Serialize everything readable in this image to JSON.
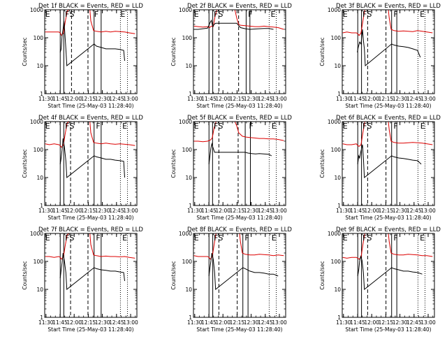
{
  "chart_data": {
    "type": "line",
    "xlabel": "Start Time (25-May-03 11:28:40)",
    "ylabel": "Counts/sec",
    "log_y": true,
    "ylim": [
      1,
      1000
    ],
    "y_ticks": [
      1,
      10,
      100,
      1000
    ],
    "x_ticks": [
      "11:30",
      "11:45",
      "12:00",
      "12:15",
      "12:30",
      "12:45",
      "13:00"
    ],
    "x_tick_minutes": [
      1.33,
      16.33,
      31.33,
      46.33,
      61.33,
      76.33,
      91.33
    ],
    "xlim_minutes": [
      0,
      98
    ],
    "series_colors": {
      "events": "#000000",
      "lld": "#dd0000"
    },
    "panels": [
      {
        "title": "Det 1f BLACK = Events, RED = LLD",
        "labels": [
          "E",
          "F",
          "S",
          "F",
          "E"
        ],
        "label_minutes": [
          0.6,
          21.5,
          26.3,
          52.5,
          80.5
        ],
        "solid_lines": [
          16.5,
          20.3,
          52.5,
          60.0
        ],
        "dashed_lines": [
          28.5,
          46.0
        ],
        "dotted_lines": [
          80.5,
          88.0
        ],
        "events": {
          "x": [
            16.5,
            17.5,
            18.5,
            19.5,
            20.5,
            21.5,
            22.5,
            23.5,
            52.5,
            55,
            60,
            65,
            70,
            75,
            80,
            84,
            85
          ],
          "y": [
            30,
            40,
            120,
            200,
            400,
            130,
            40,
            10,
            60,
            50,
            45,
            40,
            40,
            40,
            38,
            35,
            15
          ]
        },
        "lld": {
          "x": [
            0.5,
            5,
            10,
            15,
            16.5,
            18,
            20,
            22,
            24,
            26,
            28,
            48,
            49,
            52,
            55,
            60,
            65,
            70,
            75,
            80,
            85,
            90,
            96
          ],
          "y": [
            160,
            160,
            160,
            160,
            150,
            120,
            150,
            400,
            900,
            1000,
            1000,
            1000,
            400,
            180,
            170,
            160,
            170,
            160,
            170,
            165,
            160,
            150,
            140
          ]
        }
      },
      {
        "title": "Det 2f BLACK = Events, RED = LLD",
        "labels": [
          "E",
          "F",
          "S",
          "F",
          "E"
        ],
        "label_minutes": [
          0.6,
          21.5,
          26.3,
          58.0,
          82.0
        ],
        "solid_lines": [
          16.5,
          20.5,
          56.0,
          60.0
        ],
        "dashed_lines": [
          27.0,
          48.0
        ],
        "dotted_lines": [
          80.5,
          88.0
        ],
        "events": {
          "x": [
            0.5,
            5,
            10,
            15,
            16,
            17.5,
            19,
            20.5,
            22,
            23.5,
            46,
            50,
            55,
            60,
            65,
            70,
            75,
            80,
            85
          ],
          "y": [
            200,
            200,
            210,
            220,
            260,
            340,
            420,
            250,
            300,
            330,
            330,
            230,
            210,
            200,
            205,
            210,
            215,
            215,
            200
          ]
        },
        "lld": {
          "x": [
            0.5,
            5,
            10,
            15,
            17,
            19,
            21,
            23,
            25,
            27,
            29,
            44,
            46,
            48,
            50,
            55,
            60,
            65,
            70,
            75,
            80,
            85,
            90,
            96
          ],
          "y": [
            260,
            250,
            240,
            250,
            230,
            260,
            250,
            600,
            1000,
            1000,
            1000,
            1000,
            500,
            300,
            280,
            270,
            260,
            250,
            250,
            260,
            250,
            240,
            230,
            200
          ]
        }
      },
      {
        "title": "Det 3f BLACK = Events, RED = LLD",
        "labels": [
          "E",
          "F",
          "S",
          "F",
          "E"
        ],
        "label_minutes": [
          0.6,
          21.5,
          26.3,
          54.5,
          82.5
        ],
        "solid_lines": [
          16.5,
          20.5,
          52.5,
          58.0
        ],
        "dashed_lines": [
          27.0,
          46.5
        ],
        "dotted_lines": [
          80.5,
          88.0
        ],
        "events": {
          "x": [
            16,
            17,
            18.5,
            20,
            21.5,
            22.5,
            23.5,
            24.5,
            52.5,
            55,
            60,
            65,
            70,
            75,
            80,
            83
          ],
          "y": [
            30,
            45,
            70,
            60,
            200,
            80,
            40,
            10,
            60,
            55,
            50,
            48,
            45,
            40,
            35,
            20
          ]
        },
        "lld": {
          "x": [
            0.5,
            5,
            10,
            15,
            16.5,
            18,
            20,
            22,
            24,
            26,
            28,
            49,
            50,
            52,
            55,
            60,
            65,
            70,
            75,
            80,
            85,
            90,
            96
          ],
          "y": [
            150,
            160,
            150,
            150,
            140,
            120,
            150,
            400,
            1000,
            1000,
            1000,
            1000,
            500,
            200,
            180,
            170,
            175,
            170,
            165,
            180,
            170,
            160,
            150
          ]
        }
      },
      {
        "title": "Det 4f BLACK = Events, RED = LLD",
        "labels": [
          "E",
          "F",
          "S",
          "F",
          "E"
        ],
        "label_minutes": [
          0.6,
          21.5,
          26.3,
          54.5,
          82.5
        ],
        "solid_lines": [
          16.5,
          20.3,
          52.5,
          60.0
        ],
        "dashed_lines": [
          27.5,
          46.0
        ],
        "dotted_lines": [
          80.5,
          88.0
        ],
        "events": {
          "x": [
            16.5,
            17.5,
            18.5,
            19.5,
            21,
            22.5,
            23.5,
            52.5,
            55,
            60,
            65,
            70,
            75,
            80,
            84,
            85
          ],
          "y": [
            30,
            50,
            100,
            250,
            120,
            40,
            10,
            60,
            55,
            50,
            45,
            45,
            42,
            40,
            38,
            10
          ]
        },
        "lld": {
          "x": [
            0.5,
            5,
            10,
            15,
            16.5,
            18,
            20,
            22,
            24,
            26,
            28,
            48,
            49,
            52,
            55,
            60,
            65,
            70,
            75,
            80,
            85,
            90,
            96
          ],
          "y": [
            160,
            150,
            160,
            150,
            140,
            120,
            150,
            400,
            900,
            1000,
            1000,
            1000,
            400,
            180,
            170,
            160,
            170,
            160,
            155,
            160,
            155,
            150,
            140
          ]
        }
      },
      {
        "title": "Det 5f BLACK = Events, RED = LLD",
        "labels": [
          "E",
          "F",
          "S",
          "F",
          "E"
        ],
        "label_minutes": [
          0.6,
          21.5,
          26.3,
          59.0,
          83.0
        ],
        "solid_lines": [
          16.5,
          20.3,
          55.0,
          60.5
        ],
        "dashed_lines": [
          27.0,
          47.5
        ],
        "dotted_lines": [
          80.5,
          88.0
        ],
        "events": {
          "x": [
            16.5,
            17.5,
            18.5,
            19.5,
            21,
            22.5,
            55,
            58,
            62,
            66,
            70,
            75,
            80,
            83
          ],
          "y": [
            30,
            60,
            110,
            160,
            110,
            80,
            80,
            75,
            72,
            70,
            72,
            70,
            68,
            60
          ]
        },
        "lld": {
          "x": [
            0.5,
            5,
            10,
            15,
            16.5,
            18,
            20,
            22,
            24,
            26,
            28,
            44,
            46,
            48,
            52,
            56,
            60,
            65,
            70,
            75,
            80,
            85,
            90,
            96
          ],
          "y": [
            200,
            200,
            190,
            200,
            210,
            220,
            260,
            600,
            1000,
            1000,
            1000,
            1000,
            700,
            400,
            300,
            280,
            270,
            260,
            250,
            250,
            240,
            240,
            230,
            210
          ]
        }
      },
      {
        "title": "Det 6f BLACK = Events, RED = LLD",
        "labels": [
          "E",
          "F",
          "S",
          "F",
          "E"
        ],
        "label_minutes": [
          0.6,
          21.5,
          26.3,
          54.5,
          83.0
        ],
        "solid_lines": [
          16.5,
          20.5,
          52.5,
          58.0
        ],
        "dashed_lines": [
          27.0,
          46.5
        ],
        "dotted_lines": [
          80.5,
          88.0
        ],
        "events": {
          "x": [
            16.5,
            17.5,
            18.5,
            20,
            21.5,
            22.5,
            23.5,
            52.5,
            55,
            60,
            65,
            70,
            75,
            80,
            84
          ],
          "y": [
            30,
            60,
            50,
            90,
            150,
            50,
            10,
            60,
            55,
            50,
            48,
            45,
            42,
            40,
            30
          ]
        },
        "lld": {
          "x": [
            0.5,
            5,
            10,
            15,
            16.5,
            18,
            20,
            22,
            24,
            26,
            28,
            49,
            50,
            52,
            55,
            60,
            65,
            70,
            75,
            80,
            85,
            90,
            96
          ],
          "y": [
            160,
            150,
            150,
            160,
            140,
            130,
            150,
            400,
            1000,
            1000,
            1000,
            1000,
            500,
            200,
            180,
            170,
            170,
            175,
            180,
            175,
            170,
            160,
            150
          ]
        }
      },
      {
        "title": "Det 7f BLACK = Events, RED = LLD",
        "labels": [
          "E",
          "F",
          "S",
          "F",
          "E"
        ],
        "label_minutes": [
          0.6,
          21.5,
          26.3,
          54.5,
          82.5
        ],
        "solid_lines": [
          16.5,
          20.3,
          52.5,
          60.0
        ],
        "dashed_lines": [
          27.5,
          46.0
        ],
        "dotted_lines": [
          80.5,
          88.0
        ],
        "events": {
          "x": [
            16.5,
            17.5,
            18.5,
            19.5,
            21,
            22.5,
            23.5,
            52.5,
            55,
            60,
            65,
            70,
            75,
            80,
            84,
            85
          ],
          "y": [
            25,
            50,
            90,
            200,
            100,
            40,
            10,
            60,
            55,
            50,
            48,
            45,
            45,
            42,
            40,
            20
          ]
        },
        "lld": {
          "x": [
            0.5,
            5,
            10,
            15,
            16.5,
            18,
            20,
            22,
            24,
            26,
            28,
            48,
            49,
            52,
            55,
            60,
            65,
            70,
            75,
            80,
            85,
            90,
            96
          ],
          "y": [
            150,
            150,
            140,
            150,
            140,
            120,
            150,
            400,
            900,
            1000,
            1000,
            1000,
            400,
            170,
            160,
            150,
            155,
            150,
            150,
            145,
            150,
            140,
            130
          ]
        }
      },
      {
        "title": "Det 8f BLACK = Events, RED = LLD",
        "labels": [
          "E",
          "F",
          "S",
          "F",
          "E"
        ],
        "label_minutes": [
          0.6,
          21.5,
          26.3,
          54.5,
          83.0
        ],
        "solid_lines": [
          16.5,
          20.5,
          52.5,
          58.0
        ],
        "dashed_lines": [
          27.0,
          46.5
        ],
        "dotted_lines": [
          80.5,
          88.0
        ],
        "events": {
          "x": [
            16.5,
            17.5,
            18.5,
            19.5,
            21,
            22.5,
            23.5,
            52.5,
            55,
            60,
            65,
            70,
            75,
            80,
            85,
            90
          ],
          "y": [
            30,
            60,
            100,
            200,
            120,
            40,
            10,
            60,
            55,
            45,
            40,
            40,
            38,
            35,
            35,
            30
          ]
        },
        "lld": {
          "x": [
            0.5,
            5,
            10,
            15,
            16.5,
            18,
            20,
            22,
            24,
            26,
            28,
            49,
            50,
            52,
            55,
            60,
            65,
            70,
            75,
            80,
            85,
            90,
            96
          ],
          "y": [
            160,
            150,
            150,
            150,
            140,
            120,
            150,
            400,
            1000,
            1000,
            1000,
            1000,
            500,
            200,
            180,
            170,
            170,
            180,
            175,
            170,
            160,
            170,
            160
          ]
        }
      },
      {
        "title": "Det 9f BLACK = Events, RED = LLD",
        "labels": [
          "E",
          "F",
          "S",
          "F",
          "E"
        ],
        "label_minutes": [
          0.6,
          21.5,
          26.3,
          54.5,
          82.5
        ],
        "solid_lines": [
          16.5,
          20.5,
          52.5,
          58.0
        ],
        "dashed_lines": [
          27.0,
          46.5
        ],
        "dotted_lines": [
          80.5,
          88.0
        ],
        "events": {
          "x": [
            16.5,
            17.5,
            18.5,
            19.5,
            21,
            22.5,
            23.5,
            52.5,
            55,
            60,
            65,
            70,
            75,
            80,
            85
          ],
          "y": [
            30,
            50,
            100,
            150,
            110,
            40,
            10,
            60,
            55,
            50,
            45,
            45,
            42,
            40,
            35
          ]
        },
        "lld": {
          "x": [
            0.5,
            5,
            10,
            15,
            16.5,
            18,
            20,
            22,
            24,
            26,
            28,
            49,
            50,
            52,
            55,
            60,
            65,
            70,
            75,
            80,
            85,
            90,
            96
          ],
          "y": [
            140,
            130,
            140,
            140,
            130,
            120,
            140,
            400,
            1000,
            1000,
            1000,
            1000,
            500,
            200,
            180,
            170,
            170,
            180,
            175,
            170,
            160,
            160,
            150
          ]
        }
      }
    ]
  }
}
